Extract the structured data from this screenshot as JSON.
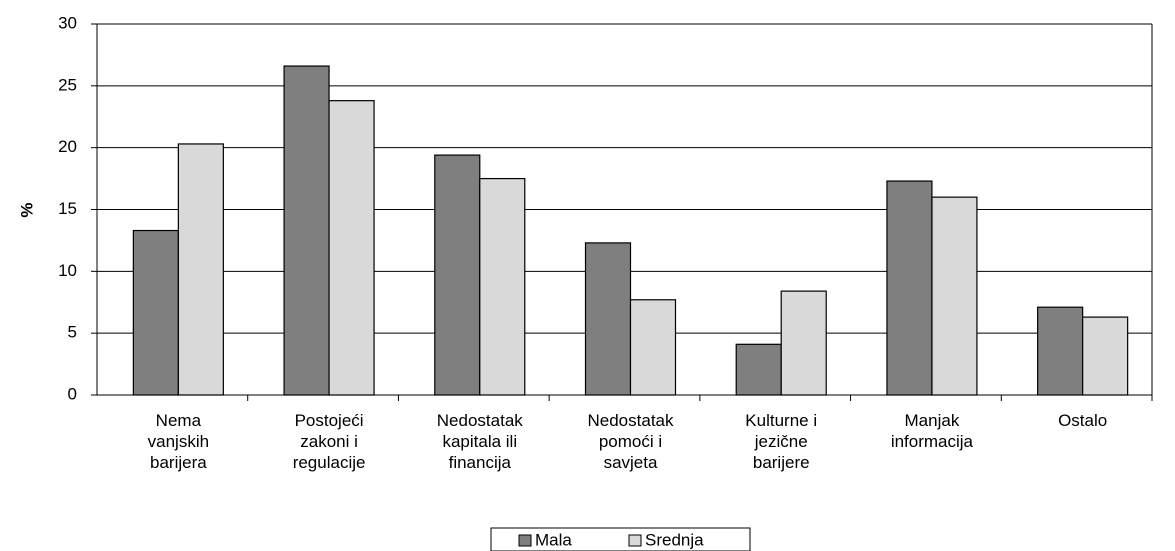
{
  "chart_data": {
    "type": "bar",
    "y_label": "%",
    "categories": [
      "Nema\nvanjskih\nbarijera",
      "Postojeći\nzakoni i\nregulacije",
      "Nedostatak\nkapitala ili\nfinancija",
      "Nedostatak\npomoći i\nsavjeta",
      "Kulturne i\njezične\nbarijere",
      "Manjak\ninformacija",
      "Ostalo"
    ],
    "series": [
      {
        "name": "Mala",
        "color": "#7f7f7f",
        "values": [
          13.3,
          26.6,
          19.4,
          12.3,
          4.1,
          17.3,
          7.1
        ]
      },
      {
        "name": "Srednja",
        "color": "#d9d9d9",
        "values": [
          20.3,
          23.8,
          17.5,
          7.7,
          8.4,
          16.0,
          6.3
        ]
      }
    ],
    "ylim": [
      0,
      30
    ],
    "yticks": [
      0,
      5,
      10,
      15,
      20,
      25,
      30
    ],
    "grid": true,
    "legend": "bottom"
  }
}
